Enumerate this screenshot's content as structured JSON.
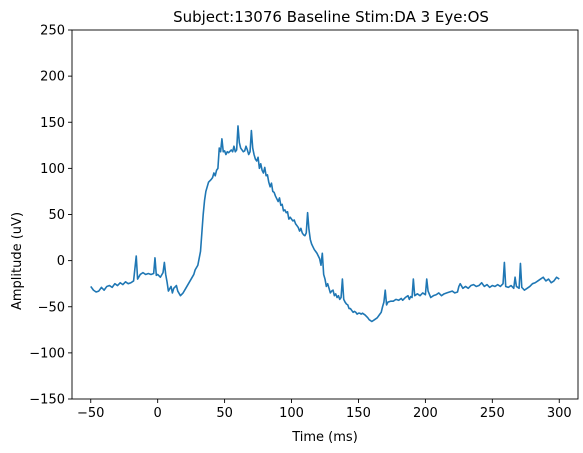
{
  "chart_data": {
    "type": "line",
    "title": "Subject:13076 Baseline Stim:DA 3 Eye:OS",
    "xlabel": "Time (ms)",
    "ylabel": "Amplitude (uV)",
    "xlim": [
      -64,
      314
    ],
    "ylim": [
      -150,
      250
    ],
    "xticks": [
      -50,
      0,
      50,
      100,
      150,
      200,
      250,
      300
    ],
    "xtick_labels": [
      "−50",
      "0",
      "50",
      "100",
      "150",
      "200",
      "250",
      "300"
    ],
    "yticks": [
      -150,
      -100,
      -50,
      0,
      50,
      100,
      150,
      200,
      250
    ],
    "ytick_labels": [
      "−150",
      "−100",
      "−50",
      "0",
      "50",
      "100",
      "150",
      "200",
      "250"
    ],
    "grid": false,
    "legend": "none",
    "series": [
      {
        "color": "#1f77b4",
        "points": [
          [
            -50,
            -28
          ],
          [
            -48,
            -32
          ],
          [
            -46,
            -34
          ],
          [
            -44,
            -33
          ],
          [
            -42,
            -29
          ],
          [
            -40,
            -32
          ],
          [
            -38,
            -28
          ],
          [
            -36,
            -27
          ],
          [
            -34,
            -29
          ],
          [
            -32,
            -25
          ],
          [
            -30,
            -27
          ],
          [
            -28,
            -24
          ],
          [
            -26,
            -26
          ],
          [
            -24,
            -23
          ],
          [
            -22,
            -25
          ],
          [
            -20,
            -24
          ],
          [
            -18,
            -22
          ],
          [
            -16,
            5
          ],
          [
            -15,
            -20
          ],
          [
            -13,
            -15
          ],
          [
            -11,
            -13
          ],
          [
            -9,
            -15
          ],
          [
            -7,
            -14
          ],
          [
            -5,
            -15
          ],
          [
            -3,
            -14
          ],
          [
            -2,
            3
          ],
          [
            -1,
            -16
          ],
          [
            0,
            -15
          ],
          [
            2,
            -18
          ],
          [
            4,
            -13
          ],
          [
            5,
            -2
          ],
          [
            6,
            -15
          ],
          [
            7,
            -23
          ],
          [
            8,
            -33
          ],
          [
            10,
            -28
          ],
          [
            11,
            -35
          ],
          [
            12,
            -30
          ],
          [
            14,
            -27
          ],
          [
            15,
            -33
          ],
          [
            17,
            -38
          ],
          [
            19,
            -35
          ],
          [
            21,
            -30
          ],
          [
            23,
            -25
          ],
          [
            25,
            -20
          ],
          [
            27,
            -15
          ],
          [
            28,
            -10
          ],
          [
            30,
            -5
          ],
          [
            32,
            10
          ],
          [
            33,
            30
          ],
          [
            34,
            50
          ],
          [
            35,
            65
          ],
          [
            36,
            75
          ],
          [
            38,
            85
          ],
          [
            40,
            88
          ],
          [
            41,
            90
          ],
          [
            42,
            95
          ],
          [
            43,
            92
          ],
          [
            44,
            98
          ],
          [
            45,
            100
          ],
          [
            46,
            122
          ],
          [
            47,
            118
          ],
          [
            48,
            132
          ],
          [
            49,
            118
          ],
          [
            50,
            119
          ],
          [
            51,
            115
          ],
          [
            52,
            118
          ],
          [
            53,
            117
          ],
          [
            55,
            120
          ],
          [
            56,
            118
          ],
          [
            57,
            124
          ],
          [
            58,
            118
          ],
          [
            59,
            120
          ],
          [
            60,
            146
          ],
          [
            61,
            128
          ],
          [
            62,
            122
          ],
          [
            64,
            118
          ],
          [
            65,
            119
          ],
          [
            66,
            124
          ],
          [
            67,
            120
          ],
          [
            68,
            115
          ],
          [
            69,
            118
          ],
          [
            70,
            141
          ],
          [
            71,
            122
          ],
          [
            72,
            115
          ],
          [
            73,
            110
          ],
          [
            74,
            108
          ],
          [
            75,
            112
          ],
          [
            76,
            100
          ],
          [
            77,
            105
          ],
          [
            78,
            98
          ],
          [
            79,
            95
          ],
          [
            80,
            101
          ],
          [
            81,
            92
          ],
          [
            82,
            93
          ],
          [
            83,
            85
          ],
          [
            84,
            80
          ],
          [
            85,
            84
          ],
          [
            86,
            75
          ],
          [
            87,
            74
          ],
          [
            88,
            70
          ],
          [
            89,
            67
          ],
          [
            90,
            64
          ],
          [
            91,
            68
          ],
          [
            92,
            60
          ],
          [
            93,
            61
          ],
          [
            94,
            54
          ],
          [
            95,
            55
          ],
          [
            96,
            52
          ],
          [
            97,
            53
          ],
          [
            98,
            45
          ],
          [
            99,
            47
          ],
          [
            100,
            45
          ],
          [
            101,
            43
          ],
          [
            102,
            44
          ],
          [
            103,
            40
          ],
          [
            104,
            38
          ],
          [
            105,
            36
          ],
          [
            106,
            32
          ],
          [
            107,
            35
          ],
          [
            108,
            30
          ],
          [
            109,
            28
          ],
          [
            110,
            27
          ],
          [
            111,
            30
          ],
          [
            112,
            52
          ],
          [
            113,
            34
          ],
          [
            114,
            23
          ],
          [
            115,
            18
          ],
          [
            116,
            15
          ],
          [
            117,
            12
          ],
          [
            118,
            10
          ],
          [
            119,
            8
          ],
          [
            120,
            5
          ],
          [
            121,
            2
          ],
          [
            122,
            -5
          ],
          [
            123,
            8
          ],
          [
            124,
            -15
          ],
          [
            125,
            -20
          ],
          [
            126,
            -28
          ],
          [
            127,
            -25
          ],
          [
            128,
            -30
          ],
          [
            129,
            -35
          ],
          [
            130,
            -33
          ],
          [
            131,
            -32
          ],
          [
            132,
            -38
          ],
          [
            133,
            -36
          ],
          [
            134,
            -40
          ],
          [
            135,
            -38
          ],
          [
            136,
            -42
          ],
          [
            137,
            -40
          ],
          [
            138,
            -20
          ],
          [
            139,
            -42
          ],
          [
            140,
            -45
          ],
          [
            141,
            -47
          ],
          [
            142,
            -48
          ],
          [
            143,
            -52
          ],
          [
            144,
            -52
          ],
          [
            145,
            -54
          ],
          [
            146,
            -56
          ],
          [
            147,
            -55
          ],
          [
            148,
            -56
          ],
          [
            149,
            -58
          ],
          [
            150,
            -57
          ],
          [
            151,
            -57
          ],
          [
            152,
            -58
          ],
          [
            153,
            -57
          ],
          [
            155,
            -59
          ],
          [
            157,
            -62
          ],
          [
            158,
            -64
          ],
          [
            160,
            -66
          ],
          [
            162,
            -64
          ],
          [
            164,
            -62
          ],
          [
            166,
            -58
          ],
          [
            167,
            -56
          ],
          [
            168,
            -50
          ],
          [
            169,
            -45
          ],
          [
            170,
            -32
          ],
          [
            171,
            -48
          ],
          [
            172,
            -45
          ],
          [
            174,
            -44
          ],
          [
            176,
            -44
          ],
          [
            178,
            -42
          ],
          [
            180,
            -43
          ],
          [
            182,
            -41
          ],
          [
            183,
            -43
          ],
          [
            185,
            -40
          ],
          [
            187,
            -38
          ],
          [
            188,
            -42
          ],
          [
            189,
            -39
          ],
          [
            190,
            -40
          ],
          [
            191,
            -20
          ],
          [
            192,
            -38
          ],
          [
            194,
            -36
          ],
          [
            196,
            -38
          ],
          [
            198,
            -35
          ],
          [
            200,
            -37
          ],
          [
            201,
            -20
          ],
          [
            202,
            -33
          ],
          [
            204,
            -40
          ],
          [
            206,
            -38
          ],
          [
            208,
            -37
          ],
          [
            210,
            -35
          ],
          [
            212,
            -38
          ],
          [
            214,
            -36
          ],
          [
            216,
            -35
          ],
          [
            218,
            -34
          ],
          [
            220,
            -33
          ],
          [
            222,
            -35
          ],
          [
            224,
            -34
          ],
          [
            225,
            -28
          ],
          [
            226,
            -25
          ],
          [
            228,
            -30
          ],
          [
            230,
            -28
          ],
          [
            232,
            -30
          ],
          [
            234,
            -27
          ],
          [
            236,
            -26
          ],
          [
            238,
            -28
          ],
          [
            240,
            -27
          ],
          [
            242,
            -24
          ],
          [
            244,
            -28
          ],
          [
            246,
            -26
          ],
          [
            248,
            -29
          ],
          [
            250,
            -27
          ],
          [
            252,
            -28
          ],
          [
            254,
            -26
          ],
          [
            256,
            -28
          ],
          [
            258,
            -25
          ],
          [
            259,
            -2
          ],
          [
            260,
            -28
          ],
          [
            262,
            -29
          ],
          [
            264,
            -27
          ],
          [
            266,
            -30
          ],
          [
            267,
            -18
          ],
          [
            268,
            -28
          ],
          [
            270,
            -30
          ],
          [
            271,
            -3
          ],
          [
            272,
            -29
          ],
          [
            274,
            -32
          ],
          [
            276,
            -30
          ],
          [
            278,
            -28
          ],
          [
            280,
            -25
          ],
          [
            282,
            -24
          ],
          [
            284,
            -22
          ],
          [
            286,
            -20
          ],
          [
            288,
            -18
          ],
          [
            290,
            -22
          ],
          [
            292,
            -20
          ],
          [
            294,
            -24
          ],
          [
            296,
            -22
          ],
          [
            298,
            -18
          ],
          [
            300,
            -20
          ]
        ]
      }
    ]
  }
}
